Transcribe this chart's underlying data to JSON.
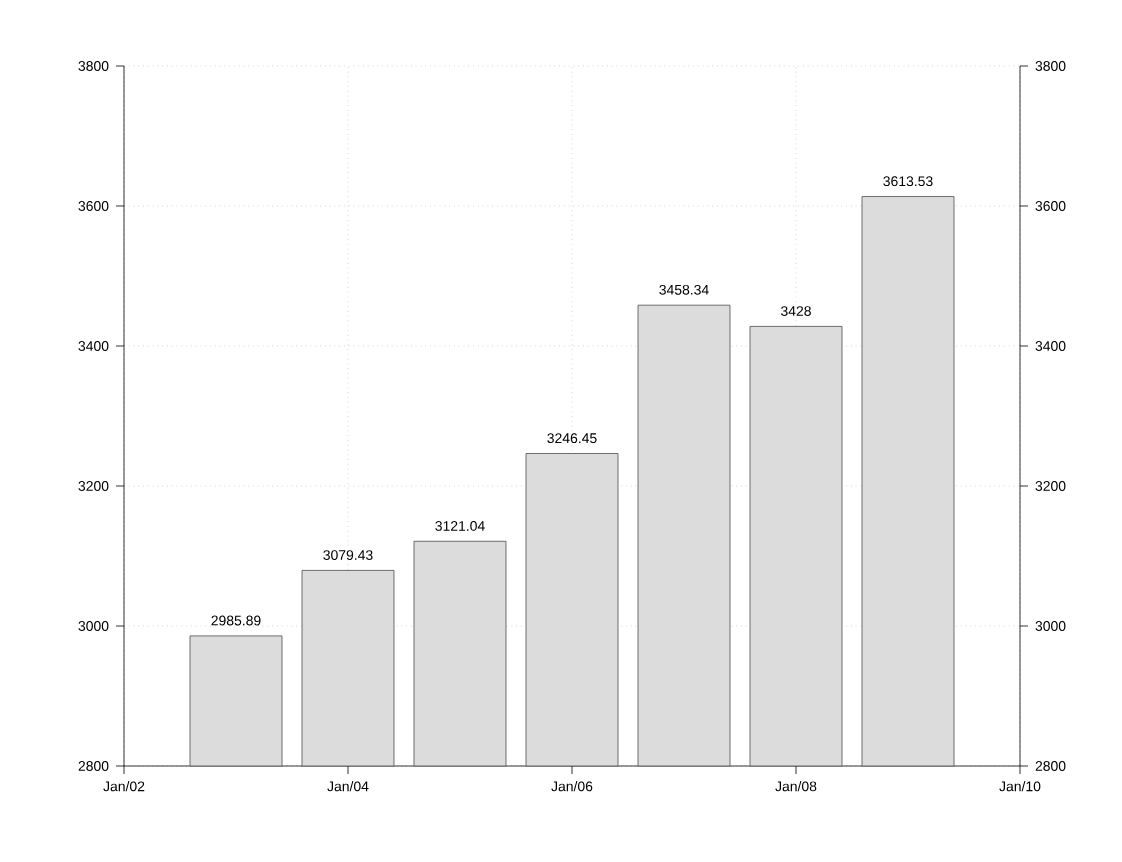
{
  "chart_data": {
    "type": "bar",
    "x": [
      "2003-01",
      "2004-01",
      "2005-01",
      "2006-01",
      "2007-01",
      "2008-01",
      "2009-01"
    ],
    "values": [
      2985.89,
      3079.43,
      3121.04,
      3246.45,
      3458.34,
      3428,
      3613.53
    ],
    "color": "#dcdcdc",
    "data_labels": true,
    "grid": true,
    "xlim": [
      "2002-01",
      "2010-01"
    ],
    "xticks": [
      {
        "value": "2002-01",
        "label": "Jan/02"
      },
      {
        "value": "2004-01",
        "label": "Jan/04"
      },
      {
        "value": "2006-01",
        "label": "Jan/06"
      },
      {
        "value": "2008-01",
        "label": "Jan/08"
      },
      {
        "value": "2010-01",
        "label": "Jan/10"
      }
    ],
    "ylim": [
      2800,
      3800
    ],
    "yticks": [
      2800,
      3000,
      3200,
      3400,
      3600,
      3800
    ],
    "y2lim": [
      2800,
      3800
    ],
    "y2ticks": [
      2800,
      3000,
      3200,
      3400,
      3600,
      3800
    ]
  }
}
